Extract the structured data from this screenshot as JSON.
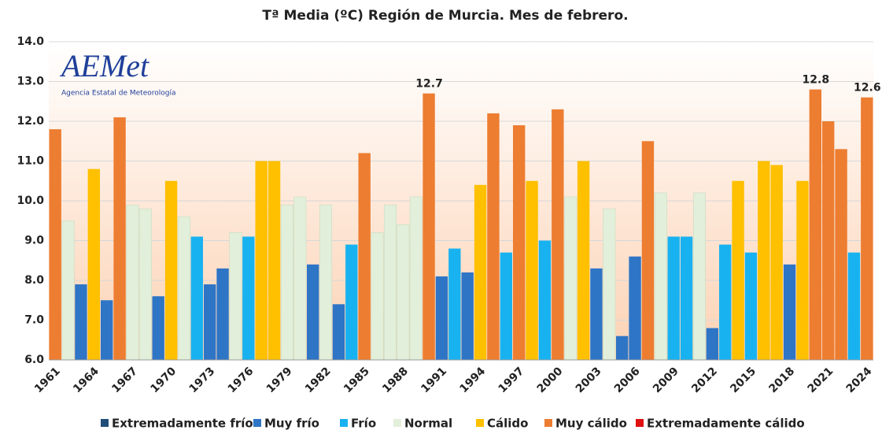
{
  "chart_data": {
    "type": "bar",
    "title": "Tª Media (ºC) Región de Murcia. Mes de febrero.",
    "logo": {
      "name": "AEMet",
      "subtitle": "Agencia Estatal de Meteorología"
    },
    "categories": [
      "1961",
      null,
      null,
      "1964",
      null,
      null,
      "1967",
      null,
      null,
      "1970",
      null,
      null,
      "1973",
      null,
      null,
      "1976",
      null,
      null,
      "1979",
      null,
      null,
      "1982",
      null,
      null,
      "1985",
      null,
      null,
      "1988",
      null,
      null,
      "1991",
      null,
      null,
      "1994",
      null,
      null,
      "1997",
      null,
      null,
      "2000",
      null,
      null,
      "2003",
      null,
      null,
      "2006",
      null,
      null,
      "2009",
      null,
      null,
      "2012",
      null,
      null,
      "2015",
      null,
      null,
      "2018",
      null,
      null,
      "2021",
      null,
      null,
      "2024"
    ],
    "series": [
      {
        "name": "Extremadamente frío",
        "color": "#1f4e79",
        "values": [
          null,
          null,
          null,
          null,
          null,
          null,
          null,
          null,
          null,
          null,
          null,
          null,
          null,
          null,
          null,
          null,
          null,
          null,
          null,
          null,
          null,
          null,
          null,
          null,
          null,
          null,
          null,
          null,
          null,
          null,
          null,
          null,
          null,
          null,
          null,
          null,
          null,
          null,
          null,
          null,
          null,
          null,
          null,
          null,
          null,
          null,
          null,
          null,
          null,
          null,
          null,
          null,
          null,
          null,
          null,
          null,
          null,
          null,
          null,
          null,
          null,
          null,
          null,
          null
        ]
      },
      {
        "name": "Muy frío",
        "color": "#2e75c6",
        "values": [
          null,
          null,
          7.9,
          null,
          7.5,
          null,
          null,
          null,
          7.6,
          null,
          null,
          null,
          7.9,
          8.3,
          null,
          null,
          null,
          null,
          null,
          null,
          8.4,
          null,
          7.4,
          null,
          null,
          null,
          null,
          null,
          null,
          null,
          8.1,
          null,
          8.2,
          null,
          null,
          null,
          null,
          null,
          null,
          null,
          null,
          null,
          8.3,
          null,
          6.6,
          8.6,
          null,
          null,
          null,
          null,
          null,
          6.8,
          null,
          null,
          null,
          null,
          null,
          8.4,
          null,
          null,
          null,
          null,
          null,
          null
        ]
      },
      {
        "name": "Frío",
        "color": "#19b2f0",
        "values": [
          null,
          null,
          null,
          null,
          null,
          null,
          null,
          null,
          null,
          null,
          null,
          9.1,
          null,
          null,
          null,
          9.1,
          null,
          null,
          null,
          null,
          null,
          null,
          null,
          8.9,
          null,
          null,
          null,
          null,
          null,
          null,
          null,
          8.8,
          null,
          null,
          null,
          8.7,
          null,
          null,
          9.0,
          null,
          null,
          null,
          null,
          null,
          null,
          null,
          null,
          null,
          9.1,
          9.1,
          null,
          null,
          8.9,
          null,
          8.7,
          null,
          null,
          null,
          null,
          null,
          null,
          null,
          8.7,
          null
        ]
      },
      {
        "name": "Normal",
        "color": "#e2efda",
        "values": [
          null,
          9.5,
          null,
          null,
          null,
          null,
          9.9,
          9.8,
          null,
          null,
          9.6,
          null,
          null,
          null,
          9.2,
          null,
          null,
          null,
          9.9,
          10.1,
          null,
          9.9,
          null,
          null,
          null,
          9.2,
          9.9,
          9.4,
          10.1,
          null,
          null,
          null,
          null,
          null,
          null,
          null,
          null,
          null,
          null,
          null,
          10.1,
          null,
          null,
          9.8,
          null,
          null,
          null,
          10.2,
          null,
          null,
          10.2,
          null,
          null,
          null,
          null,
          null,
          null,
          null,
          null,
          null,
          null,
          null,
          null,
          null
        ]
      },
      {
        "name": "Cálido",
        "color": "#ffc000",
        "values": [
          null,
          null,
          null,
          10.8,
          null,
          null,
          null,
          null,
          null,
          10.5,
          null,
          null,
          null,
          null,
          null,
          null,
          11.0,
          11.0,
          null,
          null,
          null,
          null,
          null,
          null,
          null,
          null,
          null,
          null,
          null,
          null,
          null,
          null,
          null,
          10.4,
          null,
          null,
          null,
          10.5,
          null,
          null,
          null,
          11.0,
          null,
          null,
          null,
          null,
          null,
          null,
          null,
          null,
          null,
          null,
          null,
          10.5,
          null,
          11.0,
          10.9,
          null,
          10.5,
          null,
          null,
          null,
          null,
          null
        ]
      },
      {
        "name": "Muy cálido",
        "color": "#ed7d31",
        "values": [
          11.8,
          null,
          null,
          null,
          null,
          12.1,
          null,
          null,
          null,
          null,
          null,
          null,
          null,
          null,
          null,
          null,
          null,
          null,
          null,
          null,
          null,
          null,
          null,
          null,
          11.2,
          null,
          null,
          null,
          null,
          12.7,
          null,
          null,
          null,
          null,
          12.2,
          null,
          11.9,
          null,
          null,
          12.3,
          null,
          null,
          null,
          null,
          null,
          null,
          11.5,
          null,
          null,
          null,
          null,
          null,
          null,
          null,
          null,
          null,
          null,
          null,
          null,
          12.8,
          12.0,
          11.3,
          null,
          12.6
        ],
        "value_labels": [
          null,
          null,
          null,
          null,
          null,
          null,
          null,
          null,
          null,
          null,
          null,
          null,
          null,
          null,
          null,
          null,
          null,
          null,
          null,
          null,
          null,
          null,
          null,
          null,
          null,
          null,
          null,
          null,
          null,
          "12.7",
          null,
          null,
          null,
          null,
          null,
          null,
          null,
          null,
          null,
          null,
          null,
          null,
          null,
          null,
          null,
          null,
          null,
          null,
          null,
          null,
          null,
          null,
          null,
          null,
          null,
          null,
          null,
          null,
          null,
          "12.8",
          null,
          null,
          null,
          "12.6"
        ]
      },
      {
        "name": "Extremadamente cálido",
        "color": "#e01010",
        "values": [
          null,
          null,
          null,
          null,
          null,
          null,
          null,
          null,
          null,
          null,
          null,
          null,
          null,
          null,
          null,
          null,
          null,
          null,
          null,
          null,
          null,
          null,
          null,
          null,
          null,
          null,
          null,
          null,
          null,
          null,
          null,
          null,
          null,
          null,
          null,
          null,
          null,
          null,
          null,
          null,
          null,
          null,
          null,
          null,
          null,
          null,
          null,
          null,
          null,
          null,
          null,
          null,
          null,
          null,
          null,
          null,
          null,
          null,
          null,
          null,
          null,
          null,
          null,
          null
        ]
      }
    ],
    "ylim": [
      6,
      14
    ],
    "yticks": [
      {
        "value": 6,
        "label": "6.0"
      },
      {
        "value": 7,
        "label": "7.0"
      },
      {
        "value": 8,
        "label": "8.0"
      },
      {
        "value": 9,
        "label": "9.0"
      },
      {
        "value": 10,
        "label": "10.0"
      },
      {
        "value": 11,
        "label": "11.0"
      },
      {
        "value": 12,
        "label": "12.0"
      },
      {
        "value": 13,
        "label": "13.0"
      },
      {
        "value": 14,
        "label": "14.0"
      }
    ],
    "grid": true
  }
}
